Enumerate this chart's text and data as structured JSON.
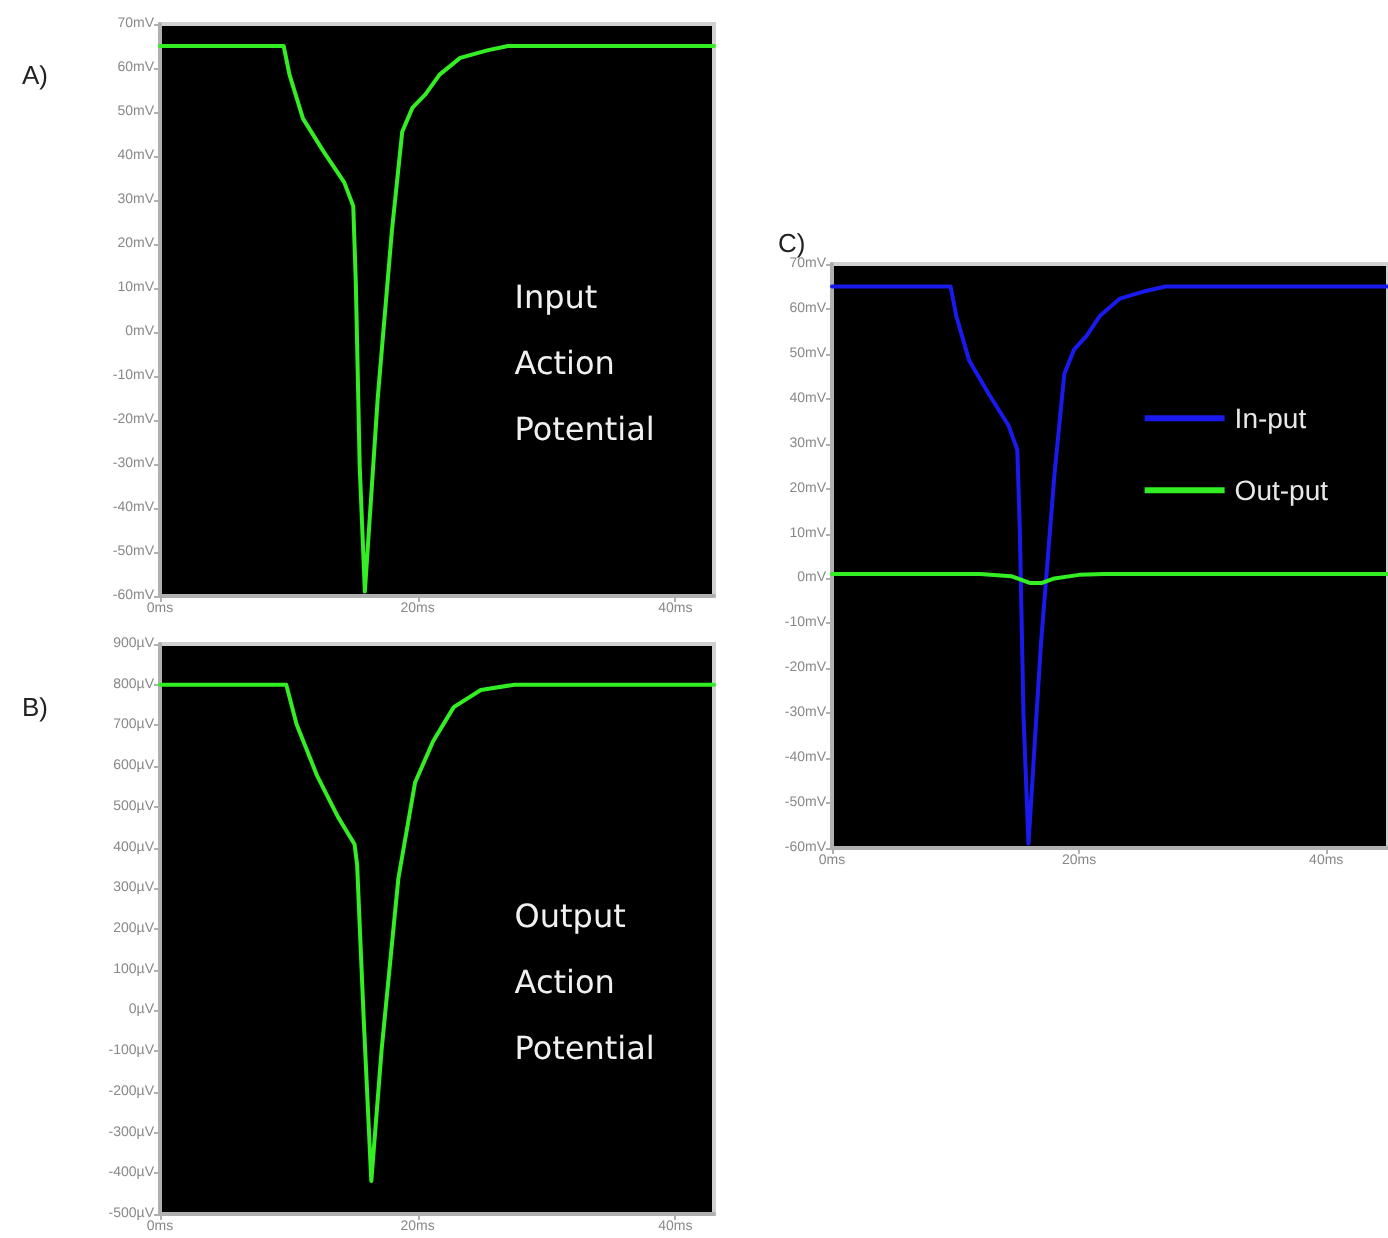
{
  "chart_data": [
    {
      "type": "line",
      "title": "A)",
      "annotations": [
        "Input Action Potential"
      ],
      "series": [
        {
          "color": "#33ee22",
          "x": [
            0,
            9.6,
            10.05,
            11.1,
            12.7,
            14.3,
            15.0,
            15.2,
            15.5,
            15.9,
            16.9,
            18.0,
            18.8,
            19.6,
            20.6,
            21.7,
            23.3,
            25.4,
            27,
            43
          ],
          "values": [
            65,
            65,
            58.5,
            48.5,
            41,
            34,
            28.6,
            11,
            -30.5,
            -59,
            -15,
            23,
            45.5,
            51,
            54,
            58.5,
            62.3,
            64,
            65,
            65
          ]
        }
      ],
      "xlim": [
        0,
        43
      ],
      "xticks": [
        {
          "value": 0,
          "label": "0ms"
        },
        {
          "value": 20,
          "label": "20ms"
        },
        {
          "value": 40,
          "label": "40ms"
        }
      ],
      "ylim": [
        -60,
        70
      ],
      "yticks": [
        {
          "value": -60,
          "label": "-60mV"
        },
        {
          "value": -50,
          "label": "-50mV"
        },
        {
          "value": -40,
          "label": "-40mV"
        },
        {
          "value": -30,
          "label": "-30mV"
        },
        {
          "value": -20,
          "label": "-20mV"
        },
        {
          "value": -10,
          "label": "-10mV"
        },
        {
          "value": 0,
          "label": "0mV"
        },
        {
          "value": 10,
          "label": "10mV"
        },
        {
          "value": 20,
          "label": "20mV"
        },
        {
          "value": 30,
          "label": "30mV"
        },
        {
          "value": 40,
          "label": "40mV"
        },
        {
          "value": 50,
          "label": "50mV"
        },
        {
          "value": 60,
          "label": "60mV"
        },
        {
          "value": 70,
          "label": "70mV"
        }
      ],
      "grid": false
    },
    {
      "type": "line",
      "title": "B)",
      "annotations": [
        "Output Action Potential"
      ],
      "series": [
        {
          "color": "#33ee22",
          "x": [
            0,
            9.8,
            10.6,
            12.2,
            13.8,
            15.1,
            15.3,
            15.8,
            16.4,
            17.2,
            18.5,
            19.8,
            21.2,
            22.8,
            24.9,
            27.5,
            43
          ],
          "values": [
            800,
            800,
            703,
            576,
            476,
            408,
            358,
            -13,
            -419,
            -97,
            324,
            560,
            661,
            745,
            787,
            800,
            800
          ]
        }
      ],
      "xlim": [
        0,
        43
      ],
      "xticks": [
        {
          "value": 0,
          "label": "0ms"
        },
        {
          "value": 20,
          "label": "20ms"
        },
        {
          "value": 40,
          "label": "40ms"
        }
      ],
      "ylim": [
        -500,
        900
      ],
      "yticks": [
        {
          "value": -500,
          "label": "-500µV"
        },
        {
          "value": -400,
          "label": "-400µV"
        },
        {
          "value": -300,
          "label": "-300µV"
        },
        {
          "value": -200,
          "label": "-200µV"
        },
        {
          "value": -100,
          "label": "-100µV"
        },
        {
          "value": 0,
          "label": "0µV"
        },
        {
          "value": 100,
          "label": "100µV"
        },
        {
          "value": 200,
          "label": "200µV"
        },
        {
          "value": 300,
          "label": "300µV"
        },
        {
          "value": 400,
          "label": "400µV"
        },
        {
          "value": 500,
          "label": "500µV"
        },
        {
          "value": 600,
          "label": "600µV"
        },
        {
          "value": 700,
          "label": "700µV"
        },
        {
          "value": 800,
          "label": "800µV"
        },
        {
          "value": 900,
          "label": "900µV"
        }
      ],
      "grid": false
    },
    {
      "type": "line",
      "title": "C)",
      "legend": "top right",
      "series": [
        {
          "name": "In-put",
          "color": "#1a1aee",
          "x": [
            0,
            9.6,
            10.05,
            11.1,
            12.7,
            14.3,
            15.0,
            15.2,
            15.5,
            15.9,
            16.9,
            18.0,
            18.8,
            19.6,
            20.6,
            21.7,
            23.3,
            25.4,
            27,
            45
          ],
          "values": [
            65,
            65,
            58.5,
            48.5,
            41,
            34,
            28.6,
            11,
            -30.5,
            -59,
            -15,
            23,
            45.5,
            51,
            54,
            58.5,
            62.3,
            64,
            65,
            65
          ]
        },
        {
          "name": "Out-put",
          "color": "#33ee22",
          "x": [
            0,
            12,
            14.5,
            16,
            17,
            18,
            20,
            22,
            45
          ],
          "values": [
            1,
            1,
            0.5,
            -1,
            -1,
            0,
            0.8,
            1,
            1
          ]
        }
      ],
      "xlim": [
        0,
        45
      ],
      "xticks": [
        {
          "value": 0,
          "label": "0ms"
        },
        {
          "value": 20,
          "label": "20ms"
        },
        {
          "value": 40,
          "label": "40ms"
        }
      ],
      "ylim": [
        -60,
        70
      ],
      "yticks": [
        {
          "value": -60,
          "label": "-60mV"
        },
        {
          "value": -50,
          "label": "-50mV"
        },
        {
          "value": -40,
          "label": "-40mV"
        },
        {
          "value": -30,
          "label": "-30mV"
        },
        {
          "value": -20,
          "label": "-20mV"
        },
        {
          "value": -10,
          "label": "-10mV"
        },
        {
          "value": 0,
          "label": "0mV"
        },
        {
          "value": 10,
          "label": "10mV"
        },
        {
          "value": 20,
          "label": "20mV"
        },
        {
          "value": 30,
          "label": "30mV"
        },
        {
          "value": 40,
          "label": "40mV"
        },
        {
          "value": 50,
          "label": "50mV"
        },
        {
          "value": 60,
          "label": "60mV"
        },
        {
          "value": 70,
          "label": "70mV"
        }
      ],
      "grid": false
    }
  ]
}
